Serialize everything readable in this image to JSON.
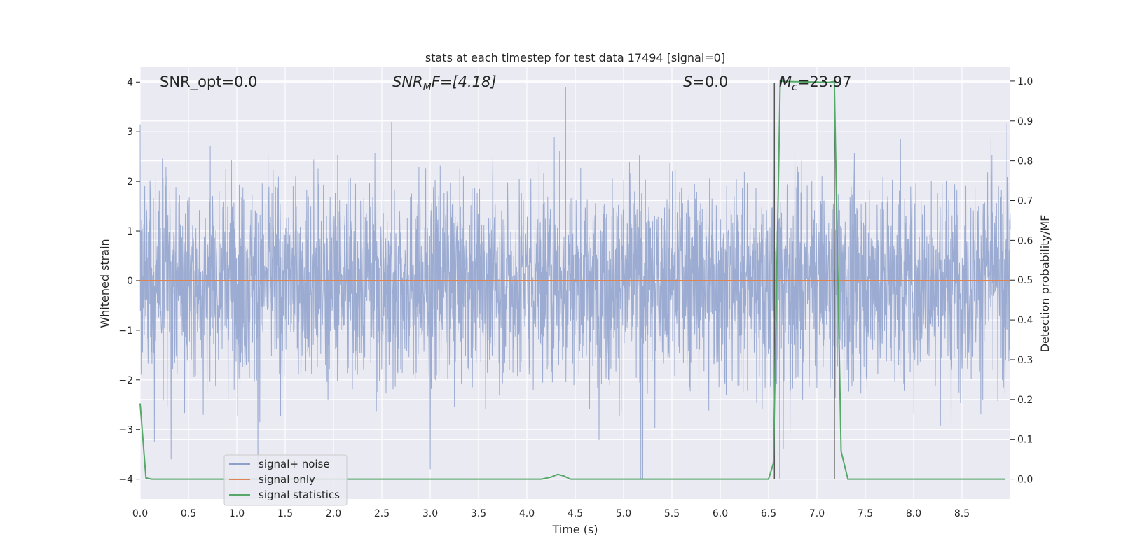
{
  "chart_data": {
    "type": "line",
    "title": "stats at each timestep for test data 17494 [signal=0]",
    "xlabel": "Time (s)",
    "ylabel": "Whitened strain",
    "y2label": "Detection probability/MF",
    "xlim": [
      0.0,
      9.0
    ],
    "ylim": [
      -4.4,
      4.3
    ],
    "y2lim": [
      -0.05,
      1.035
    ],
    "xticks": [
      "0.0",
      "0.5",
      "1.0",
      "1.5",
      "2.0",
      "2.5",
      "3.0",
      "3.5",
      "4.0",
      "4.5",
      "5.0",
      "5.5",
      "6.0",
      "6.5",
      "7.0",
      "7.5",
      "8.0",
      "8.5"
    ],
    "xtick_values": [
      0.0,
      0.5,
      1.0,
      1.5,
      2.0,
      2.5,
      3.0,
      3.5,
      4.0,
      4.5,
      5.0,
      5.5,
      6.0,
      6.5,
      7.0,
      7.5,
      8.0,
      8.5
    ],
    "yticks": [
      "−4",
      "−3",
      "−2",
      "−1",
      "0",
      "1",
      "2",
      "3",
      "4"
    ],
    "ytick_values": [
      -4,
      -3,
      -2,
      -1,
      0,
      1,
      2,
      3,
      4
    ],
    "y2ticks": [
      "0.0",
      "0.1",
      "0.2",
      "0.3",
      "0.4",
      "0.5",
      "0.6",
      "0.7",
      "0.8",
      "0.9",
      "1.0"
    ],
    "y2tick_values": [
      0.0,
      0.1,
      0.2,
      0.3,
      0.4,
      0.5,
      0.6,
      0.7,
      0.8,
      0.9,
      1.0
    ],
    "grid": true,
    "legend_placement": "lower-left",
    "annotations": {
      "snr_opt": "SNR_opt=0.0",
      "snr_mf_main": "SNR",
      "snr_mf_sub": "M",
      "snr_mf_rest": "F=[4.18]",
      "s_main": "S",
      "s_rest": "=0.0",
      "mc_main": "M",
      "mc_sub": "c",
      "mc_rest": "=23.97"
    },
    "series": [
      {
        "name": "signal+ noise",
        "color": "#8da0cb",
        "axis": "left",
        "x_range": [
          0.0,
          9.0
        ],
        "envelope_y": [
          -4.0,
          3.9
        ],
        "notable_peaks": [
          [
            0.0,
            3.15
          ],
          [
            2.6,
            3.2
          ],
          [
            3.0,
            3.15
          ],
          [
            4.4,
            3.9
          ],
          [
            0.32,
            -3.6
          ],
          [
            3.0,
            -3.8
          ],
          [
            5.2,
            -4.0
          ]
        ]
      },
      {
        "name": "signal only",
        "color": "#dd8452",
        "axis": "left",
        "x": [
          0.0,
          9.0
        ],
        "y": [
          0.0,
          0.0
        ]
      },
      {
        "name": "signal statistics",
        "color": "#55a868",
        "axis": "right",
        "x": [
          0.0,
          0.06,
          0.12,
          4.15,
          4.25,
          4.32,
          4.38,
          4.45,
          6.5,
          6.55,
          6.62,
          6.68,
          7.12,
          7.18,
          7.25,
          7.32,
          8.95
        ],
        "y": [
          0.19,
          0.003,
          0.0,
          0.0,
          0.005,
          0.012,
          0.008,
          0.0,
          0.0,
          0.04,
          1.0,
          0.999,
          0.997,
          0.999,
          0.07,
          0.0,
          0.0
        ]
      }
    ],
    "mf_markers": {
      "color": "#555555",
      "axis": "right",
      "x": [
        6.56,
        7.18
      ],
      "y_top": 0.995
    }
  }
}
